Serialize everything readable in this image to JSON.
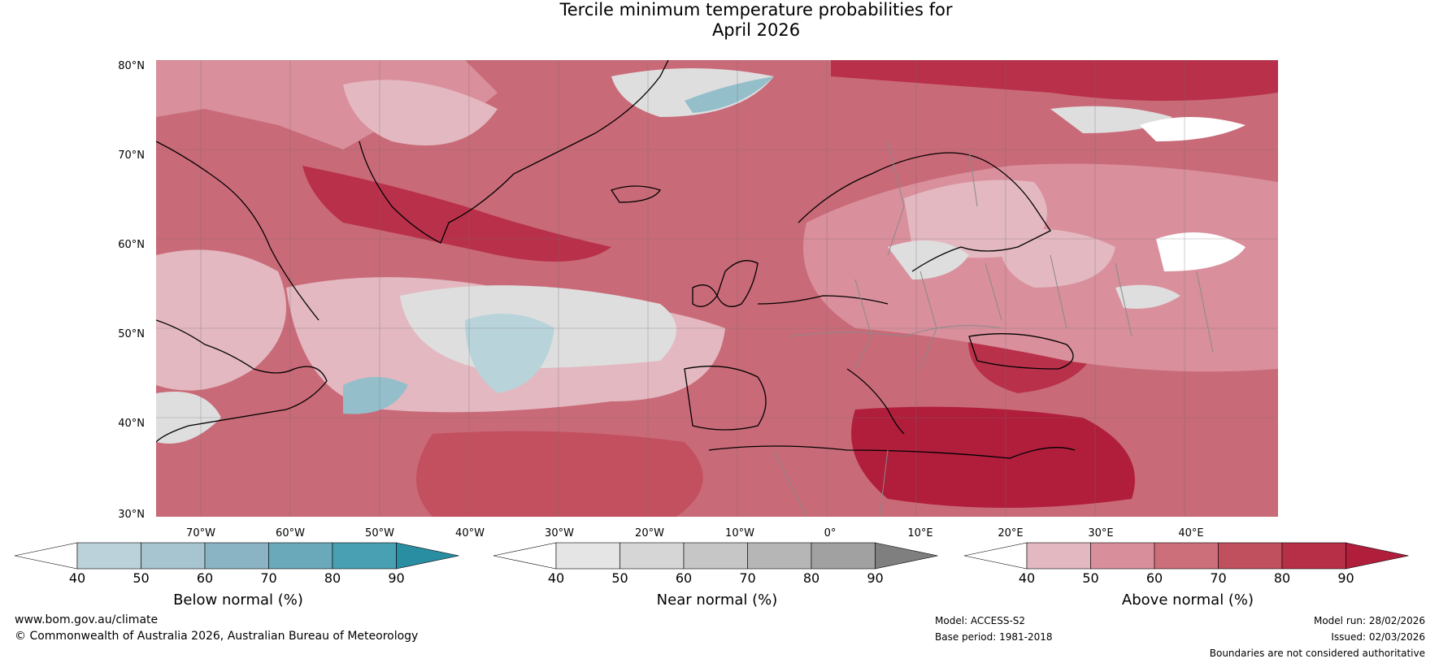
{
  "title": {
    "line1": "Tercile minimum temperature probabilities for",
    "line2": "April 2026"
  },
  "map": {
    "lat_labels": [
      "80°N",
      "70°N",
      "60°N",
      "50°N",
      "40°N",
      "30°N"
    ],
    "lon_labels": [
      "70°W",
      "60°W",
      "50°W",
      "40°W",
      "30°W",
      "20°W",
      "10°W",
      "0°",
      "10°E",
      "20°E",
      "30°E",
      "40°E"
    ],
    "colors": {
      "ocean_base": "#c96a78",
      "above_40": "#e3b8c0",
      "above_50": "#d98f9c",
      "above_60": "#cd6f7d",
      "above_70": "#c3505f",
      "above_80": "#b8304a",
      "above_90": "#b01e3c",
      "near": "#dedede",
      "below_50": "#b9d3da",
      "below_60": "#94bfca",
      "coast": "#000000",
      "border": "#8a8a8a"
    }
  },
  "colorbars": {
    "below": {
      "title": "Below normal (%)",
      "ticks": [
        "40",
        "50",
        "60",
        "70",
        "80",
        "90"
      ],
      "colors": [
        "#ffffff",
        "#bcd2da",
        "#a6c5d0",
        "#8ab4c3",
        "#6aa9ba",
        "#48a0b2",
        "#2a8ea3"
      ]
    },
    "near": {
      "title": "Near normal (%)",
      "ticks": [
        "40",
        "50",
        "60",
        "70",
        "80",
        "90"
      ],
      "colors": [
        "#ffffff",
        "#e5e5e5",
        "#d6d6d6",
        "#c6c6c6",
        "#b5b6b5",
        "#a2a1a1",
        "#7f7f7f"
      ]
    },
    "above": {
      "title": "Above normal (%)",
      "ticks": [
        "40",
        "50",
        "60",
        "70",
        "80",
        "90"
      ],
      "colors": [
        "#ffffff",
        "#e4b8c0",
        "#d98f9b",
        "#cd6e7b",
        "#c1505f",
        "#b72f46",
        "#b01e3c"
      ]
    }
  },
  "footer": {
    "website": "www.bom.gov.au/climate",
    "copyright": "© Commonwealth of Australia 2026, Australian Bureau of Meteorology",
    "model": "Model: ACCESS-S2",
    "base_period": "Base period: 1981-2018",
    "model_run": "Model run: 28/02/2026",
    "issued": "Issued: 02/03/2026",
    "disclaimer": "Boundaries are not considered authoritative"
  }
}
